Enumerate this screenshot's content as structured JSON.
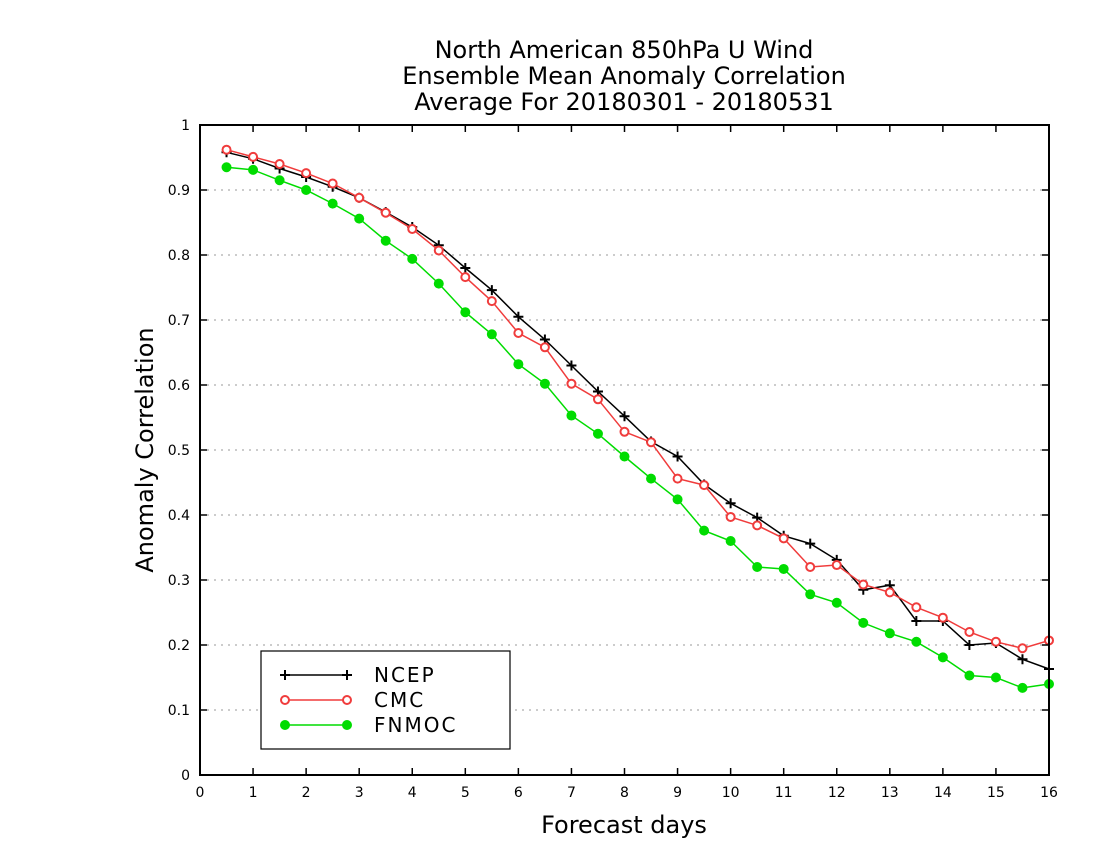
{
  "chart_data": {
    "type": "line",
    "title_lines": [
      "North American 850hPa U Wind",
      "Ensemble Mean Anomaly Correlation",
      "Average For 20180301 - 20180531"
    ],
    "xlabel": "Forecast days",
    "ylabel": "Anomaly Correlation",
    "xlim": [
      0,
      16
    ],
    "ylim": [
      0,
      1
    ],
    "x_ticks": [
      0,
      1,
      2,
      3,
      4,
      5,
      6,
      7,
      8,
      9,
      10,
      11,
      12,
      13,
      14,
      15,
      16
    ],
    "y_ticks": [
      0,
      0.1,
      0.2,
      0.3,
      0.4,
      0.5,
      0.6,
      0.7,
      0.8,
      0.9,
      1
    ],
    "y_tick_labels": [
      "0",
      "0.1",
      "0.2",
      "0.3",
      "0.4",
      "0.5",
      "0.6",
      "0.7",
      "0.8",
      "0.9",
      "1"
    ],
    "grid": "horizontal dotted",
    "legend_position": "bottom-left",
    "x": [
      0.5,
      1,
      1.5,
      2,
      2.5,
      3,
      3.5,
      4,
      4.5,
      5,
      5.5,
      6,
      6.5,
      7,
      7.5,
      8,
      8.5,
      9,
      9.5,
      10,
      10.5,
      11,
      11.5,
      12,
      12.5,
      13,
      13.5,
      14,
      14.5,
      15,
      15.5,
      16
    ],
    "series": [
      {
        "name": "NCEP",
        "color": "#000000",
        "marker": "plus",
        "values": [
          0.958,
          0.948,
          0.933,
          0.92,
          0.905,
          0.888,
          0.866,
          0.843,
          0.815,
          0.78,
          0.746,
          0.705,
          0.67,
          0.63,
          0.59,
          0.552,
          0.513,
          0.49,
          0.447,
          0.418,
          0.396,
          0.368,
          0.356,
          0.331,
          0.285,
          0.292,
          0.237,
          0.237,
          0.2,
          0.203,
          0.178,
          0.163
        ]
      },
      {
        "name": "CMC",
        "color": "#f03c3c",
        "marker": "open-circle",
        "values": [
          0.962,
          0.951,
          0.94,
          0.926,
          0.91,
          0.888,
          0.865,
          0.84,
          0.807,
          0.766,
          0.729,
          0.68,
          0.658,
          0.602,
          0.578,
          0.528,
          0.512,
          0.456,
          0.446,
          0.397,
          0.384,
          0.364,
          0.32,
          0.323,
          0.293,
          0.281,
          0.258,
          0.242,
          0.22,
          0.205,
          0.195,
          0.207
        ]
      },
      {
        "name": "FNMOC",
        "color": "#00dc00",
        "marker": "filled-circle",
        "values": [
          0.935,
          0.931,
          0.915,
          0.9,
          0.879,
          0.856,
          0.822,
          0.794,
          0.756,
          0.712,
          0.678,
          0.632,
          0.602,
          0.553,
          0.525,
          0.49,
          0.456,
          0.424,
          0.376,
          0.36,
          0.32,
          0.317,
          0.278,
          0.265,
          0.234,
          0.218,
          0.205,
          0.181,
          0.153,
          0.15,
          0.134,
          0.14
        ]
      }
    ]
  }
}
